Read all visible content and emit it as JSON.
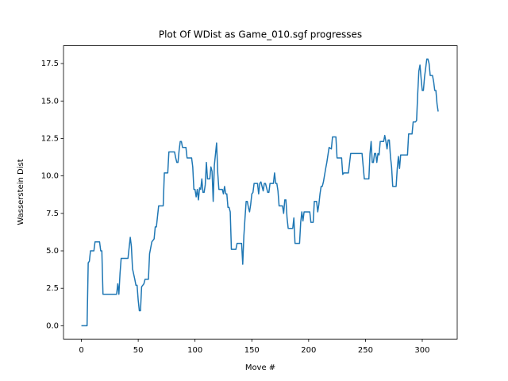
{
  "chart_data": {
    "type": "line",
    "title": "Plot Of WDist as Game_010.sgf progresses",
    "xlabel": "Move #",
    "ylabel": "Wasserstein Dist",
    "color": "#1f77b4",
    "x": [
      0,
      5,
      6,
      7,
      8,
      11,
      12,
      16,
      17,
      18,
      19,
      31,
      32,
      33,
      34,
      35,
      41,
      43,
      44,
      45,
      47,
      48,
      49,
      50,
      51,
      52,
      53,
      55,
      56,
      59,
      60,
      61,
      62,
      64,
      65,
      66,
      67,
      68,
      72,
      73,
      76,
      77,
      82,
      83,
      84,
      85,
      86,
      87,
      88,
      89,
      92,
      93,
      97,
      98,
      99,
      100,
      101,
      102,
      103,
      104,
      105,
      106,
      107,
      108,
      109,
      110,
      111,
      113,
      114,
      115,
      116,
      117,
      119,
      120,
      121,
      124,
      125,
      126,
      127,
      128,
      129,
      130,
      131,
      132,
      136,
      137,
      141,
      142,
      143,
      144,
      145,
      146,
      147,
      148,
      149,
      150,
      151,
      152,
      155,
      156,
      157,
      158,
      160,
      161,
      162,
      163,
      164,
      165,
      166,
      169,
      170,
      171,
      172,
      173,
      174,
      177,
      178,
      179,
      180,
      181,
      182,
      186,
      187,
      188,
      192,
      193,
      194,
      195,
      196,
      201,
      202,
      204,
      205,
      207,
      208,
      209,
      210,
      211,
      212,
      213,
      215,
      216,
      218,
      220,
      221,
      224,
      225,
      229,
      230,
      231,
      235,
      237,
      247,
      249,
      253,
      254,
      255,
      256,
      257,
      258,
      259,
      260,
      261,
      262,
      263,
      266,
      267,
      268,
      269,
      270,
      271,
      272,
      273,
      274,
      277,
      278,
      279,
      280,
      281,
      287,
      288,
      291,
      292,
      294,
      295,
      296,
      297,
      298,
      299,
      300,
      301,
      302,
      303,
      304,
      305,
      306,
      307,
      309,
      310,
      311,
      312,
      313,
      314
    ],
    "values": [
      0,
      0,
      4.2,
      4.3,
      5.0,
      5.0,
      5.6,
      5.6,
      5.0,
      5.0,
      2.1,
      2.1,
      2.8,
      2.1,
      3.5,
      4.5,
      4.5,
      5.9,
      5.3,
      3.8,
      3.1,
      2.7,
      2.7,
      1.7,
      1.0,
      1.0,
      2.6,
      2.8,
      3.1,
      3.1,
      4.8,
      5.2,
      5.6,
      5.8,
      6.6,
      6.6,
      7.3,
      8.0,
      8.0,
      10.2,
      10.2,
      11.6,
      11.6,
      11.2,
      10.9,
      10.9,
      11.7,
      12.3,
      12.3,
      11.9,
      11.9,
      11.2,
      11.2,
      10.6,
      9.1,
      9.1,
      8.6,
      9.1,
      8.4,
      9.2,
      9.1,
      9.8,
      8.9,
      8.9,
      9.4,
      10.9,
      9.8,
      9.8,
      10.6,
      10.3,
      8.3,
      10.7,
      12.2,
      10.2,
      9.1,
      9.1,
      8.8,
      9.3,
      8.8,
      8.8,
      7.9,
      7.9,
      7.6,
      5.1,
      5.1,
      5.5,
      5.5,
      4.1,
      6.0,
      7.2,
      8.3,
      8.3,
      7.9,
      7.6,
      8.1,
      8.8,
      8.9,
      9.5,
      9.5,
      8.8,
      9.5,
      9.6,
      9.0,
      9.5,
      9.5,
      9.2,
      8.9,
      8.9,
      9.5,
      9.5,
      10.2,
      9.5,
      9.5,
      9.0,
      8.0,
      8.0,
      7.5,
      8.4,
      8.4,
      7.2,
      6.5,
      6.5,
      7.2,
      5.5,
      5.5,
      6.9,
      7.6,
      7.0,
      7.6,
      7.6,
      6.9,
      6.9,
      8.3,
      8.3,
      7.6,
      8.1,
      8.8,
      9.3,
      9.3,
      9.6,
      10.5,
      10.9,
      11.9,
      11.8,
      12.6,
      12.6,
      11.2,
      11.2,
      10.1,
      10.2,
      10.2,
      11.5,
      11.5,
      9.8,
      9.8,
      11.5,
      12.3,
      10.9,
      10.9,
      11.5,
      11.5,
      10.9,
      11.5,
      11.4,
      12.3,
      12.3,
      12.7,
      12.3,
      11.8,
      12.4,
      12.4,
      11.3,
      10.6,
      9.3,
      9.3,
      10.5,
      11.3,
      10.5,
      11.4,
      11.4,
      12.8,
      12.8,
      13.6,
      13.6,
      13.7,
      15.5,
      17.0,
      17.4,
      16.5,
      15.7,
      15.7,
      16.6,
      17.2,
      17.8,
      17.8,
      17.5,
      16.7,
      16.7,
      16.3,
      15.7,
      15.7,
      14.8,
      14.3
    ],
    "xlim": [
      -15.75,
      330.75
    ],
    "ylim": [
      -0.89,
      18.69
    ],
    "xticks": [
      0,
      50,
      100,
      150,
      200,
      250,
      300
    ],
    "yticks": [
      {
        "value": 0,
        "label": "0.0"
      },
      2.5,
      {
        "value": 5,
        "label": "5.0"
      },
      7.5,
      {
        "value": 10,
        "label": "10.0"
      },
      12.5,
      {
        "value": 15,
        "label": "15.0"
      },
      17.5
    ]
  }
}
